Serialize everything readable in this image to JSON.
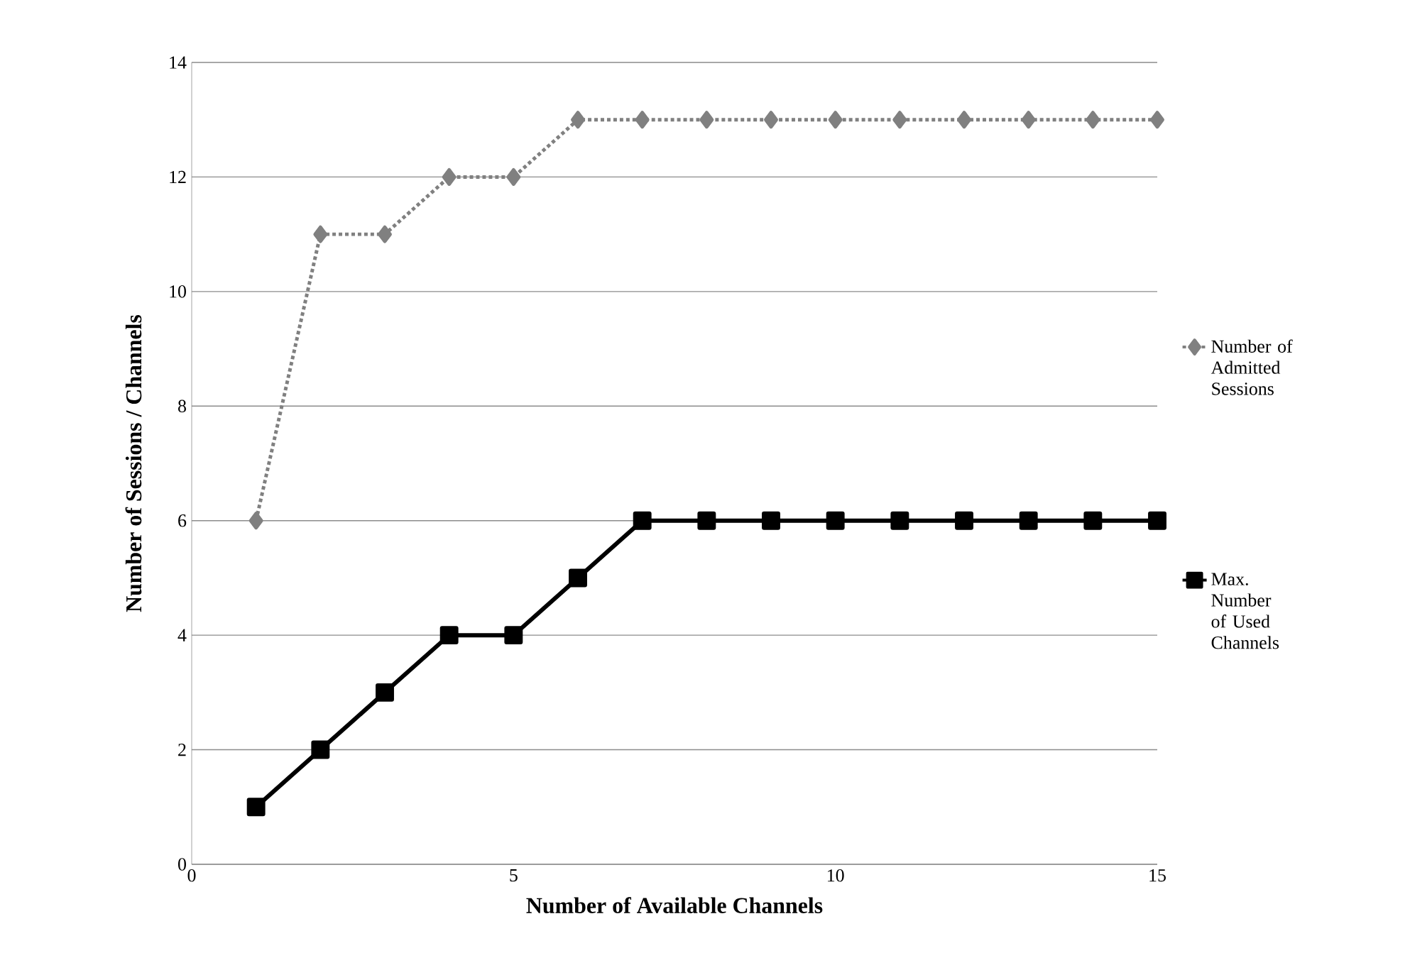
{
  "chart_data": {
    "type": "line",
    "xlabel": "Number of Available Channels",
    "ylabel": "Number of Sessions / Channels",
    "x": [
      1,
      2,
      3,
      4,
      5,
      6,
      7,
      8,
      9,
      10,
      11,
      12,
      13,
      14,
      15
    ],
    "series": [
      {
        "name": "Number of Admitted Sessions",
        "color": "#808080",
        "marker": "diamond",
        "line_style": "dotted",
        "values": [
          6,
          11,
          11,
          12,
          12,
          13,
          13,
          13,
          13,
          13,
          13,
          13,
          13,
          13,
          13
        ]
      },
      {
        "name": "Max. Number of Used Channels",
        "color": "#000000",
        "marker": "square",
        "line_style": "solid",
        "values": [
          1,
          2,
          3,
          4,
          4,
          5,
          6,
          6,
          6,
          6,
          6,
          6,
          6,
          6,
          6
        ]
      }
    ],
    "xlim": [
      0,
      15
    ],
    "xticks": [
      0,
      5,
      10,
      15
    ],
    "ylim": [
      0,
      14
    ],
    "yticks": [
      0,
      2,
      4,
      6,
      8,
      10,
      12,
      14
    ],
    "grid": "y",
    "legend": "right"
  }
}
